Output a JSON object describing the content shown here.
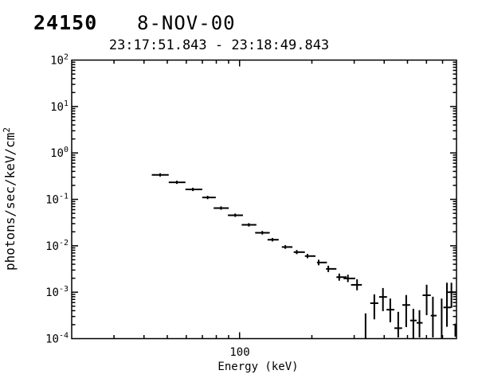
{
  "header": {
    "flare_number": "24150",
    "date": "8-NOV-00",
    "time_range": "23:17:51.843 - 23:18:49.843"
  },
  "colors": {
    "foreground": "#000000",
    "background": "#ffffff"
  },
  "chart_data": {
    "type": "scatter",
    "title": "24150 8-NOV-00",
    "subtitle": "23:17:51.843 - 23:18:49.843",
    "xlabel": "Energy (keV)",
    "ylabel": "photons/sec/keV/cm^2",
    "ylabel_base": "photons/sec/keV/cm",
    "ylabel_sup": "2",
    "x_scale": "log",
    "y_scale": "log",
    "xlim": [
      20,
      800
    ],
    "ylim": [
      0.0001,
      100
    ],
    "x_major_ticks": [
      100
    ],
    "x_major_tick_labels": [
      "100"
    ],
    "y_major_exponents": [
      2,
      1,
      0,
      -1,
      -2,
      -3,
      -4
    ],
    "grid": false,
    "legend": false,
    "marker_style": "horizontal bin bar with uncapped vertical error bar",
    "points": [
      {
        "e": 46.7,
        "e_lo": 43.1,
        "e_hi": 50.7,
        "f": 0.337,
        "f_lo": 0.31,
        "f_hi": 0.365
      },
      {
        "e": 54.8,
        "e_lo": 50.7,
        "e_hi": 59.5,
        "f": 0.233,
        "f_lo": 0.215,
        "f_hi": 0.252
      },
      {
        "e": 63.9,
        "e_lo": 59.5,
        "e_hi": 69.9,
        "f": 0.164,
        "f_lo": 0.151,
        "f_hi": 0.178
      },
      {
        "e": 73.6,
        "e_lo": 69.9,
        "e_hi": 79.6,
        "f": 0.11,
        "f_lo": 0.101,
        "f_hi": 0.119
      },
      {
        "e": 83.7,
        "e_lo": 78.0,
        "e_hi": 90.1,
        "f": 0.0649,
        "f_lo": 0.0598,
        "f_hi": 0.0704
      },
      {
        "e": 95.9,
        "e_lo": 89.4,
        "e_hi": 103.3,
        "f": 0.0455,
        "f_lo": 0.0419,
        "f_hi": 0.0494
      },
      {
        "e": 109.3,
        "e_lo": 102.0,
        "e_hi": 117.5,
        "f": 0.0283,
        "f_lo": 0.026,
        "f_hi": 0.0307
      },
      {
        "e": 124.3,
        "e_lo": 116.1,
        "e_hi": 133.5,
        "f": 0.0191,
        "f_lo": 0.0175,
        "f_hi": 0.0208
      },
      {
        "e": 137.0,
        "e_lo": 130.8,
        "e_hi": 145.5,
        "f": 0.0135,
        "f_lo": 0.0124,
        "f_hi": 0.0147
      },
      {
        "e": 155.0,
        "e_lo": 149.9,
        "e_hi": 166.0,
        "f": 0.0094,
        "f_lo": 0.0086,
        "f_hi": 0.0103
      },
      {
        "e": 173.0,
        "e_lo": 168.0,
        "e_hi": 187.0,
        "f": 0.0073,
        "f_lo": 0.0066,
        "f_hi": 0.0081
      },
      {
        "e": 191.8,
        "e_lo": 187.0,
        "e_hi": 207.0,
        "f": 0.006,
        "f_lo": 0.0054,
        "f_hi": 0.0067
      },
      {
        "e": 213.4,
        "e_lo": 210.0,
        "e_hi": 231.0,
        "f": 0.00436,
        "f_lo": 0.0038,
        "f_hi": 0.005
      },
      {
        "e": 234.1,
        "e_lo": 229.0,
        "e_hi": 253.0,
        "f": 0.00318,
        "f_lo": 0.00272,
        "f_hi": 0.00372
      },
      {
        "e": 259.9,
        "e_lo": 253.0,
        "e_hi": 279.0,
        "f": 0.00211,
        "f_lo": 0.00177,
        "f_hi": 0.00252
      },
      {
        "e": 282.5,
        "e_lo": 271.0,
        "e_hi": 303.0,
        "f": 0.00198,
        "f_lo": 0.00165,
        "f_hi": 0.00238
      },
      {
        "e": 308.4,
        "e_lo": 291.0,
        "e_hi": 323.0,
        "f": 0.00144,
        "f_lo": 0.0011,
        "f_hi": 0.0019
      },
      {
        "e": 334.6,
        "e_lo": 322.0,
        "e_hi": 347.0,
        "f": null,
        "f_lo": 0.0001,
        "f_hi": 0.00035
      },
      {
        "e": 363.9,
        "e_lo": 350.0,
        "e_hi": 378.0,
        "f": 0.00058,
        "f_lo": 0.00026,
        "f_hi": 0.0009
      },
      {
        "e": 395.3,
        "e_lo": 381.0,
        "e_hi": 411.0,
        "f": 0.00079,
        "f_lo": 0.00039,
        "f_hi": 0.00123
      },
      {
        "e": 424.0,
        "e_lo": 409.0,
        "e_hi": 441.0,
        "f": 0.00042,
        "f_lo": 0.000225,
        "f_hi": 0.00073
      },
      {
        "e": 457.6,
        "e_lo": 441.0,
        "e_hi": 475.0,
        "f": 0.000168,
        "f_lo": 0.000106,
        "f_hi": 0.000378
      },
      {
        "e": 494.0,
        "e_lo": 476.0,
        "e_hi": 513.0,
        "f": 0.00053,
        "f_lo": 0.000177,
        "f_hi": 0.00087
      },
      {
        "e": 529.0,
        "e_lo": 513.0,
        "e_hi": 546.0,
        "f": 0.000246,
        "f_lo": 0.000102,
        "f_hi": 0.00044
      },
      {
        "e": 561.0,
        "e_lo": 546.0,
        "e_hi": 578.0,
        "f": 0.000219,
        "f_lo": 0.000106,
        "f_hi": 0.00041
      },
      {
        "e": 601.0,
        "e_lo": 578.0,
        "e_hi": 625.0,
        "f": 0.00086,
        "f_lo": 0.00032,
        "f_hi": 0.00145
      },
      {
        "e": 638.0,
        "e_lo": 625.0,
        "e_hi": 661.0,
        "f": 0.000313,
        "f_lo": 0.000106,
        "f_hi": 0.0008
      },
      {
        "e": 694.0,
        "e_lo": 676.0,
        "e_hi": 712.0,
        "f": null,
        "f_lo": 0.000103,
        "f_hi": 0.00073
      },
      {
        "e": 730.0,
        "e_lo": 706.0,
        "e_hi": 758.0,
        "f": 0.00047,
        "f_lo": 0.00018,
        "f_hi": 0.0016
      },
      {
        "e": 762.0,
        "e_lo": 736.0,
        "e_hi": 800.0,
        "f": 0.001,
        "f_lo": 0.00046,
        "f_hi": 0.0016
      },
      {
        "e": 791.0,
        "e_lo": 780.0,
        "e_hi": 800.0,
        "f": null,
        "f_lo": 0.00011,
        "f_hi": 0.00021
      }
    ]
  }
}
